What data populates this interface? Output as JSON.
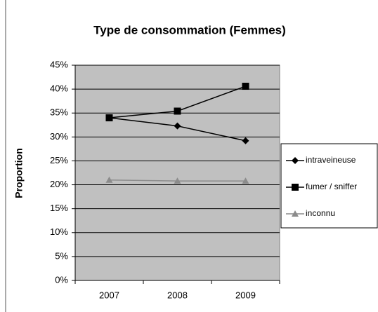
{
  "chart_data": {
    "type": "line",
    "title": "Type de consommation (Femmes)",
    "y_label": "Proportion",
    "categories": [
      "2007",
      "2008",
      "2009"
    ],
    "series": [
      {
        "name": "intraveineuse",
        "color": "#000000",
        "marker": "diamond",
        "values": [
          34.0,
          32.3,
          29.2
        ]
      },
      {
        "name": "fumer / sniffer",
        "color": "#000000",
        "marker": "square",
        "values": [
          34.0,
          35.4,
          40.6
        ]
      },
      {
        "name": "inconnu",
        "color": "#8c8c8c",
        "marker": "triangle",
        "values": [
          21.0,
          20.8,
          20.8
        ]
      }
    ],
    "ylim": [
      0,
      45
    ],
    "yticks": [
      {
        "value": 0,
        "label": "0%"
      },
      {
        "value": 5,
        "label": "5%"
      },
      {
        "value": 10,
        "label": "10%"
      },
      {
        "value": 15,
        "label": "15%"
      },
      {
        "value": 20,
        "label": "20%"
      },
      {
        "value": 25,
        "label": "25%"
      },
      {
        "value": 30,
        "label": "30%"
      },
      {
        "value": 35,
        "label": "35%"
      },
      {
        "value": 40,
        "label": "40%"
      },
      {
        "value": 45,
        "label": "45%"
      }
    ],
    "grid": true,
    "legend": "right"
  }
}
